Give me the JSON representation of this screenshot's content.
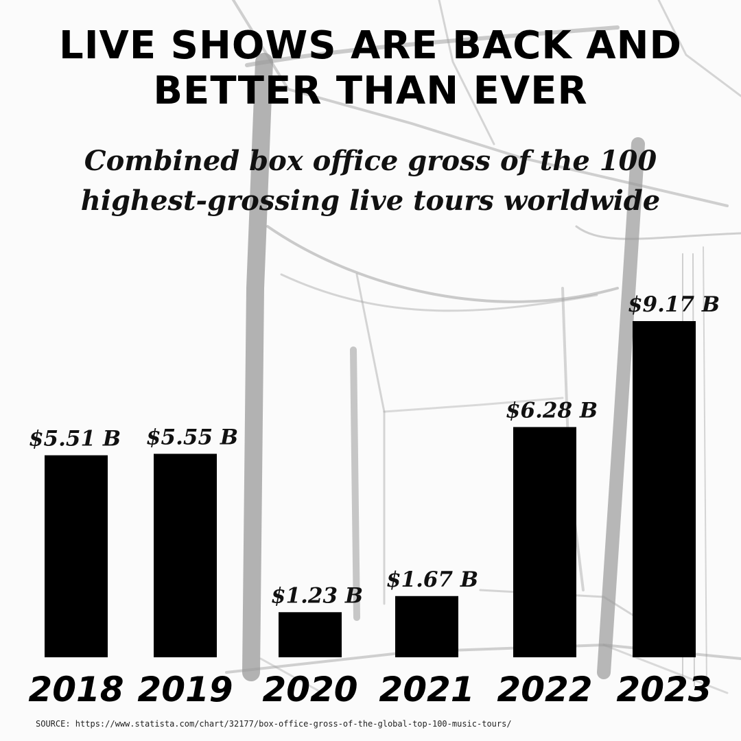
{
  "title": "LIVE SHOWS ARE BACK AND BETTER THAN EVER",
  "subtitle": "Combined box office gross of the 100 highest-grossing live tours worldwide",
  "source": "SOURCE: https://www.statista.com/chart/32177/box-office-gross-of-the-global-top-100-music-tours/",
  "colors": {
    "bar": "#000000",
    "background": "#fbfbfb",
    "sketch": "#9a9a9a"
  },
  "chart_data": {
    "type": "bar",
    "title": "LIVE SHOWS ARE BACK AND BETTER THAN EVER",
    "subtitle": "Combined box office gross of the 100 highest-grossing live tours worldwide",
    "categories": [
      "2018",
      "2019",
      "2020",
      "2021",
      "2022",
      "2023"
    ],
    "values": [
      5.51,
      5.55,
      1.23,
      1.67,
      6.28,
      9.17
    ],
    "data_labels": [
      "$5.51 B",
      "$5.55 B",
      "$1.23 B",
      "$1.67 B",
      "$6.28 B",
      "$9.17 B"
    ],
    "unit": "B",
    "ylim": [
      0,
      9.17
    ],
    "grid": false,
    "legend": "none"
  }
}
